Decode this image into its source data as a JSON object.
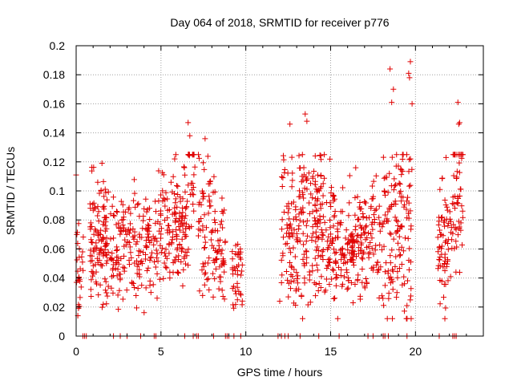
{
  "chart_data": {
    "type": "scatter",
    "title": "Day 064 of 2018, SRMTID for receiver p776",
    "xlabel": "GPS time / hours",
    "ylabel": "SRMTID / TECUs",
    "xlim": [
      0,
      24
    ],
    "ylim": [
      0,
      0.2
    ],
    "xticks": [
      0,
      5,
      10,
      15,
      20
    ],
    "xtick_labels": [
      "0",
      "5",
      "10",
      "15",
      "20"
    ],
    "yticks": [
      0,
      0.02,
      0.04,
      0.06,
      0.08,
      0.1,
      0.12,
      0.14,
      0.16,
      0.18,
      0.2
    ],
    "ytick_labels": [
      "0",
      "0.02",
      "0.04",
      "0.06",
      "0.08",
      "0.1",
      "0.12",
      "0.14",
      "0.16",
      "0.18",
      "0.2"
    ],
    "grid": true,
    "marker": "+",
    "color": "#e00000",
    "zero_markers": [
      0.4,
      0.5,
      0.6,
      2.2,
      2.6,
      3.0,
      3.8,
      4.6,
      4.7,
      6.4,
      6.9,
      7.1,
      7.2,
      8.1,
      8.8,
      8.9,
      9.0,
      9.3,
      9.7,
      11.9,
      12.1,
      12.3,
      12.5,
      13.2,
      14.3,
      15.5,
      17.2,
      17.5,
      18.1,
      18.2,
      18.4,
      19.5,
      21.4,
      22.2,
      22.3,
      22.4
    ],
    "clusters": [
      {
        "range": [
          0.0,
          0.45
        ],
        "center": 0.055,
        "spread": 0.022,
        "count": 25
      },
      {
        "range": [
          0.8,
          1.9
        ],
        "center": 0.062,
        "spread": 0.02,
        "count": 120
      },
      {
        "range": [
          2.0,
          3.0
        ],
        "center": 0.06,
        "spread": 0.018,
        "count": 70
      },
      {
        "range": [
          3.0,
          4.8
        ],
        "center": 0.06,
        "spread": 0.02,
        "count": 110
      },
      {
        "range": [
          4.8,
          6.6
        ],
        "center": 0.075,
        "spread": 0.02,
        "count": 140
      },
      {
        "range": [
          6.6,
          7.0
        ],
        "center": 0.11,
        "spread": 0.02,
        "count": 30
      },
      {
        "range": [
          7.2,
          8.2
        ],
        "center": 0.075,
        "spread": 0.025,
        "count": 70
      },
      {
        "range": [
          8.2,
          8.8
        ],
        "center": 0.055,
        "spread": 0.015,
        "count": 40
      },
      {
        "range": [
          9.2,
          9.8
        ],
        "center": 0.045,
        "spread": 0.012,
        "count": 40
      },
      {
        "range": [
          12.1,
          13.4
        ],
        "center": 0.07,
        "spread": 0.025,
        "count": 110
      },
      {
        "range": [
          13.4,
          14.8
        ],
        "center": 0.075,
        "spread": 0.025,
        "count": 120
      },
      {
        "range": [
          14.8,
          16.4
        ],
        "center": 0.065,
        "spread": 0.02,
        "count": 130
      },
      {
        "range": [
          16.4,
          18.0
        ],
        "center": 0.068,
        "spread": 0.02,
        "count": 110
      },
      {
        "range": [
          18.0,
          19.4
        ],
        "center": 0.07,
        "spread": 0.03,
        "count": 110
      },
      {
        "range": [
          19.4,
          19.8
        ],
        "center": 0.09,
        "spread": 0.04,
        "count": 30
      },
      {
        "range": [
          21.3,
          22.2
        ],
        "center": 0.06,
        "spread": 0.02,
        "count": 70
      },
      {
        "range": [
          22.2,
          22.8
        ],
        "center": 0.095,
        "spread": 0.025,
        "count": 50
      }
    ],
    "outliers": [
      {
        "x": 6.6,
        "y": 0.147
      },
      {
        "x": 6.7,
        "y": 0.138
      },
      {
        "x": 7.6,
        "y": 0.136
      },
      {
        "x": 12.6,
        "y": 0.146
      },
      {
        "x": 13.5,
        "y": 0.153
      },
      {
        "x": 13.6,
        "y": 0.148
      },
      {
        "x": 18.5,
        "y": 0.184
      },
      {
        "x": 18.7,
        "y": 0.17
      },
      {
        "x": 18.6,
        "y": 0.161
      },
      {
        "x": 19.7,
        "y": 0.189
      },
      {
        "x": 19.6,
        "y": 0.181
      },
      {
        "x": 19.65,
        "y": 0.178
      },
      {
        "x": 19.8,
        "y": 0.16
      },
      {
        "x": 22.5,
        "y": 0.161
      },
      {
        "x": 22.6,
        "y": 0.147
      },
      {
        "x": 22.55,
        "y": 0.146
      },
      {
        "x": 21.8,
        "y": 0.123
      },
      {
        "x": 0.0,
        "y": 0.111
      },
      {
        "x": 0.1,
        "y": 0.014
      },
      {
        "x": 19.5,
        "y": 0.021
      },
      {
        "x": 12.0,
        "y": 0.024
      }
    ]
  }
}
